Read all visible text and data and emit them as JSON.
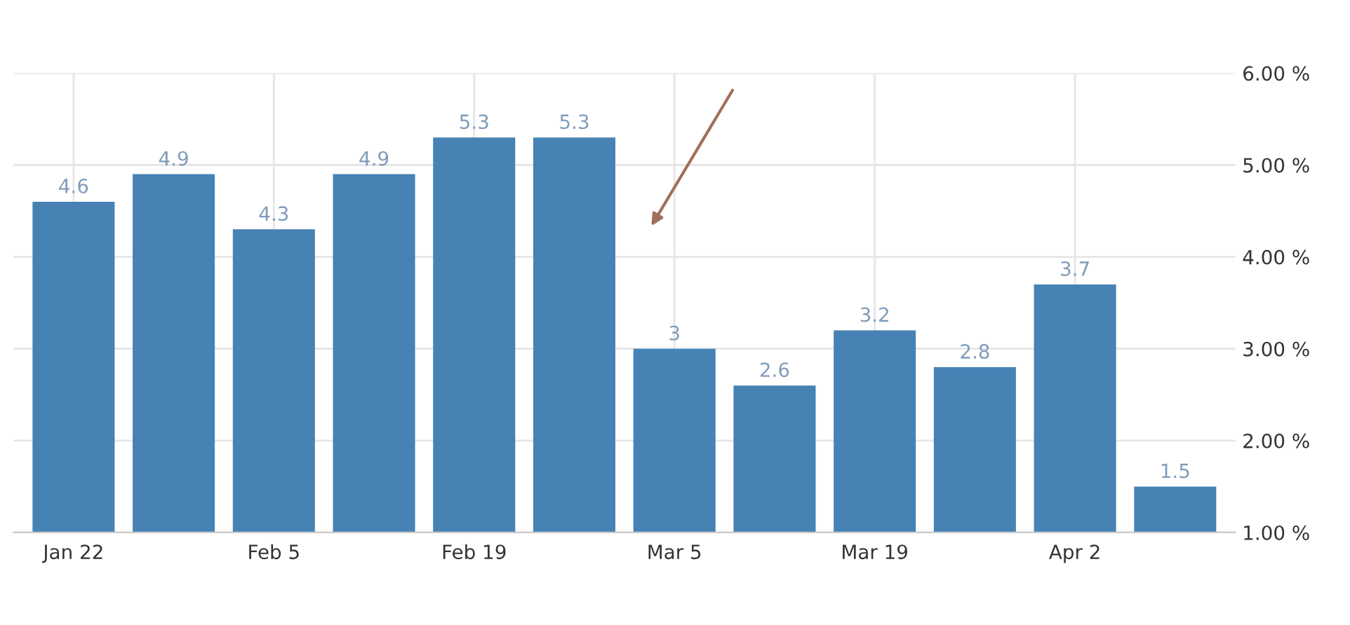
{
  "chart_data": {
    "type": "bar",
    "categories": [
      "Jan 22",
      null,
      "Feb 5",
      null,
      "Feb 19",
      null,
      "Mar 5",
      null,
      "Mar 19",
      null,
      "Apr 2",
      null
    ],
    "values": [
      4.6,
      4.9,
      4.3,
      4.9,
      5.3,
      5.3,
      3,
      2.6,
      3.2,
      2.8,
      3.7,
      1.5
    ],
    "color": "#4682b4",
    "ylim": [
      1,
      6
    ],
    "yticks": [
      {
        "value": 1,
        "label": "1.00 %"
      },
      {
        "value": 2,
        "label": "2.00 %"
      },
      {
        "value": 3,
        "label": "3.00 %"
      },
      {
        "value": 4,
        "label": "4.00 %"
      },
      {
        "value": 5,
        "label": "5.00 %"
      },
      {
        "value": 6,
        "label": "6.00 %"
      }
    ],
    "grid": true,
    "data_labels": true
  }
}
